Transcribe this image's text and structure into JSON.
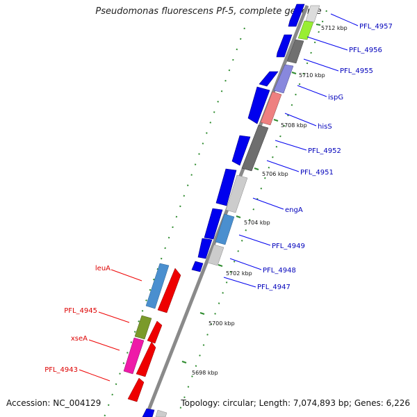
{
  "title": "Pseudomonas fluorescens Pf-5, complete genome",
  "footer": {
    "accession": "Accession: NC_004129",
    "topology": "Topology: circular; Length: 7,074,893 bp; Genes: 6,226"
  },
  "colors": {
    "forward_label": "#0000bb",
    "reverse_label": "#dd0000",
    "backbone": "#8a8a8a",
    "tick_dots": "#2e8b2e"
  },
  "tick_labels": [
    "5712 kbp",
    "5710 kbp",
    "5708 kbp",
    "5706 kbp",
    "5704 kbp",
    "5702 kbp",
    "5700 kbp",
    "5698 kbp"
  ],
  "forward_labels": [
    "PFL_4957",
    "PFL_4956",
    "PFL_4955",
    "ispG",
    "hisS",
    "PFL_4952",
    "PFL_4951",
    "engA",
    "PFL_4949",
    "PFL_4948",
    "PFL_4947"
  ],
  "reverse_labels": [
    "leuA",
    "PFL_4945",
    "xseA",
    "PFL_4943"
  ]
}
